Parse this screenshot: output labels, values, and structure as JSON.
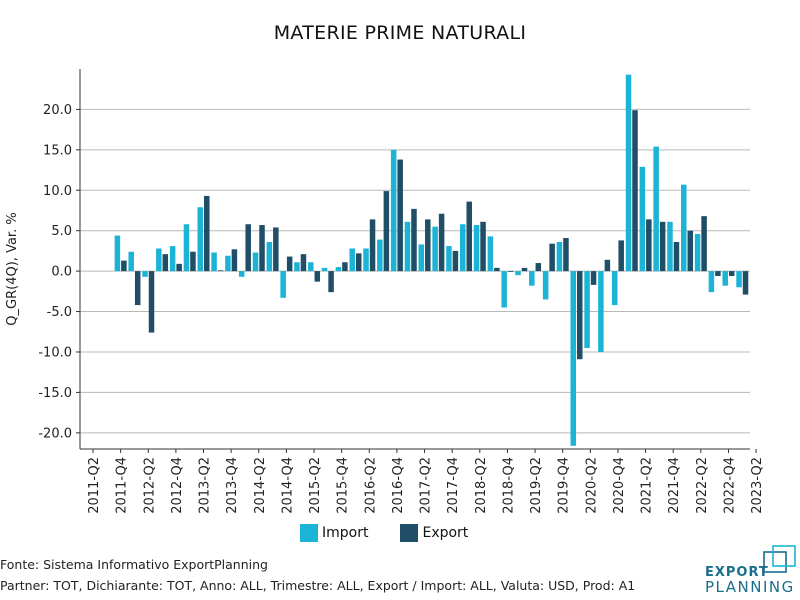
{
  "chart_data": {
    "type": "bar",
    "title": "MATERIE PRIME NATURALI",
    "ylabel": "Q_GR(4Q), Var. %",
    "xlabel": "",
    "ylim": [
      -22,
      25
    ],
    "yticks": [
      -20,
      -15,
      -10,
      -5,
      0,
      5,
      10,
      15,
      20
    ],
    "ytick_labels": [
      "-20.0",
      "-15.0",
      "-10.0",
      "-5.0",
      "0.0",
      "5.0",
      "10.0",
      "15.0",
      "20.0"
    ],
    "grid": true,
    "legend_position": "bottom-center",
    "categories": [
      "2011-Q2",
      "2011-Q3",
      "2011-Q4",
      "2012-Q1",
      "2012-Q2",
      "2012-Q3",
      "2012-Q4",
      "2013-Q1",
      "2013-Q2",
      "2013-Q3",
      "2013-Q4",
      "2014-Q1",
      "2014-Q2",
      "2014-Q3",
      "2014-Q4",
      "2015-Q1",
      "2015-Q2",
      "2015-Q3",
      "2015-Q4",
      "2016-Q1",
      "2016-Q2",
      "2016-Q3",
      "2016-Q4",
      "2017-Q1",
      "2017-Q2",
      "2017-Q3",
      "2017-Q4",
      "2018-Q1",
      "2018-Q2",
      "2018-Q3",
      "2018-Q4",
      "2019-Q1",
      "2019-Q2",
      "2019-Q3",
      "2019-Q4",
      "2020-Q1",
      "2020-Q2",
      "2020-Q3",
      "2020-Q4",
      "2021-Q1",
      "2021-Q2",
      "2021-Q3",
      "2021-Q4",
      "2022-Q1",
      "2022-Q2",
      "2022-Q3",
      "2022-Q4",
      "2023-Q1",
      "2023-Q2"
    ],
    "tick_labels_shown": [
      "2011-Q2",
      "2011-Q4",
      "2012-Q2",
      "2012-Q4",
      "2013-Q2",
      "2013-Q4",
      "2014-Q2",
      "2014-Q4",
      "2015-Q2",
      "2015-Q4",
      "2016-Q2",
      "2016-Q4",
      "2017-Q2",
      "2017-Q4",
      "2018-Q2",
      "2018-Q4",
      "2019-Q2",
      "2019-Q4",
      "2020-Q2",
      "2020-Q4",
      "2021-Q2",
      "2021-Q4",
      "2022-Q2",
      "2022-Q4",
      "2023-Q2"
    ],
    "series": [
      {
        "name": "Import",
        "color": "#1bb3d6",
        "values": [
          null,
          null,
          4.4,
          2.4,
          -0.7,
          2.8,
          3.1,
          5.8,
          7.9,
          2.3,
          1.9,
          -0.7,
          2.3,
          3.6,
          -3.3,
          1.1,
          1.1,
          0.4,
          0.5,
          2.8,
          2.8,
          3.9,
          15.0,
          6.1,
          3.3,
          5.5,
          3.1,
          5.8,
          5.7,
          4.3,
          -4.5,
          -0.5,
          -1.8,
          -3.5,
          3.6,
          -21.6,
          -9.5,
          -10.0,
          -4.2,
          24.3,
          12.9,
          15.4,
          6.1,
          10.7,
          4.6,
          -2.6,
          -1.8,
          -2.0,
          null
        ]
      },
      {
        "name": "Export",
        "color": "#1f4e66",
        "values": [
          null,
          null,
          1.3,
          -4.2,
          -7.6,
          2.1,
          0.9,
          2.4,
          9.3,
          0.1,
          2.7,
          5.8,
          5.7,
          5.4,
          1.8,
          2.1,
          -1.3,
          -2.6,
          1.1,
          2.2,
          6.4,
          9.9,
          13.8,
          7.7,
          6.4,
          7.1,
          2.5,
          8.6,
          6.1,
          0.4,
          0.0,
          0.4,
          1.0,
          3.4,
          4.1,
          -10.9,
          -1.7,
          1.4,
          3.8,
          19.9,
          6.4,
          6.1,
          3.6,
          5.0,
          6.8,
          -0.6,
          -0.6,
          -2.9,
          null
        ]
      }
    ]
  },
  "footer": {
    "source": "Fonte: Sistema Informativo ExportPlanning",
    "partner": "Partner: TOT, Dichiarante: TOT, Anno: ALL, Trimestre: ALL, Export / Import: ALL, Valuta: USD, Prod: A1"
  },
  "logo": {
    "line1": "EXPORT",
    "line2": "PLANNING"
  }
}
